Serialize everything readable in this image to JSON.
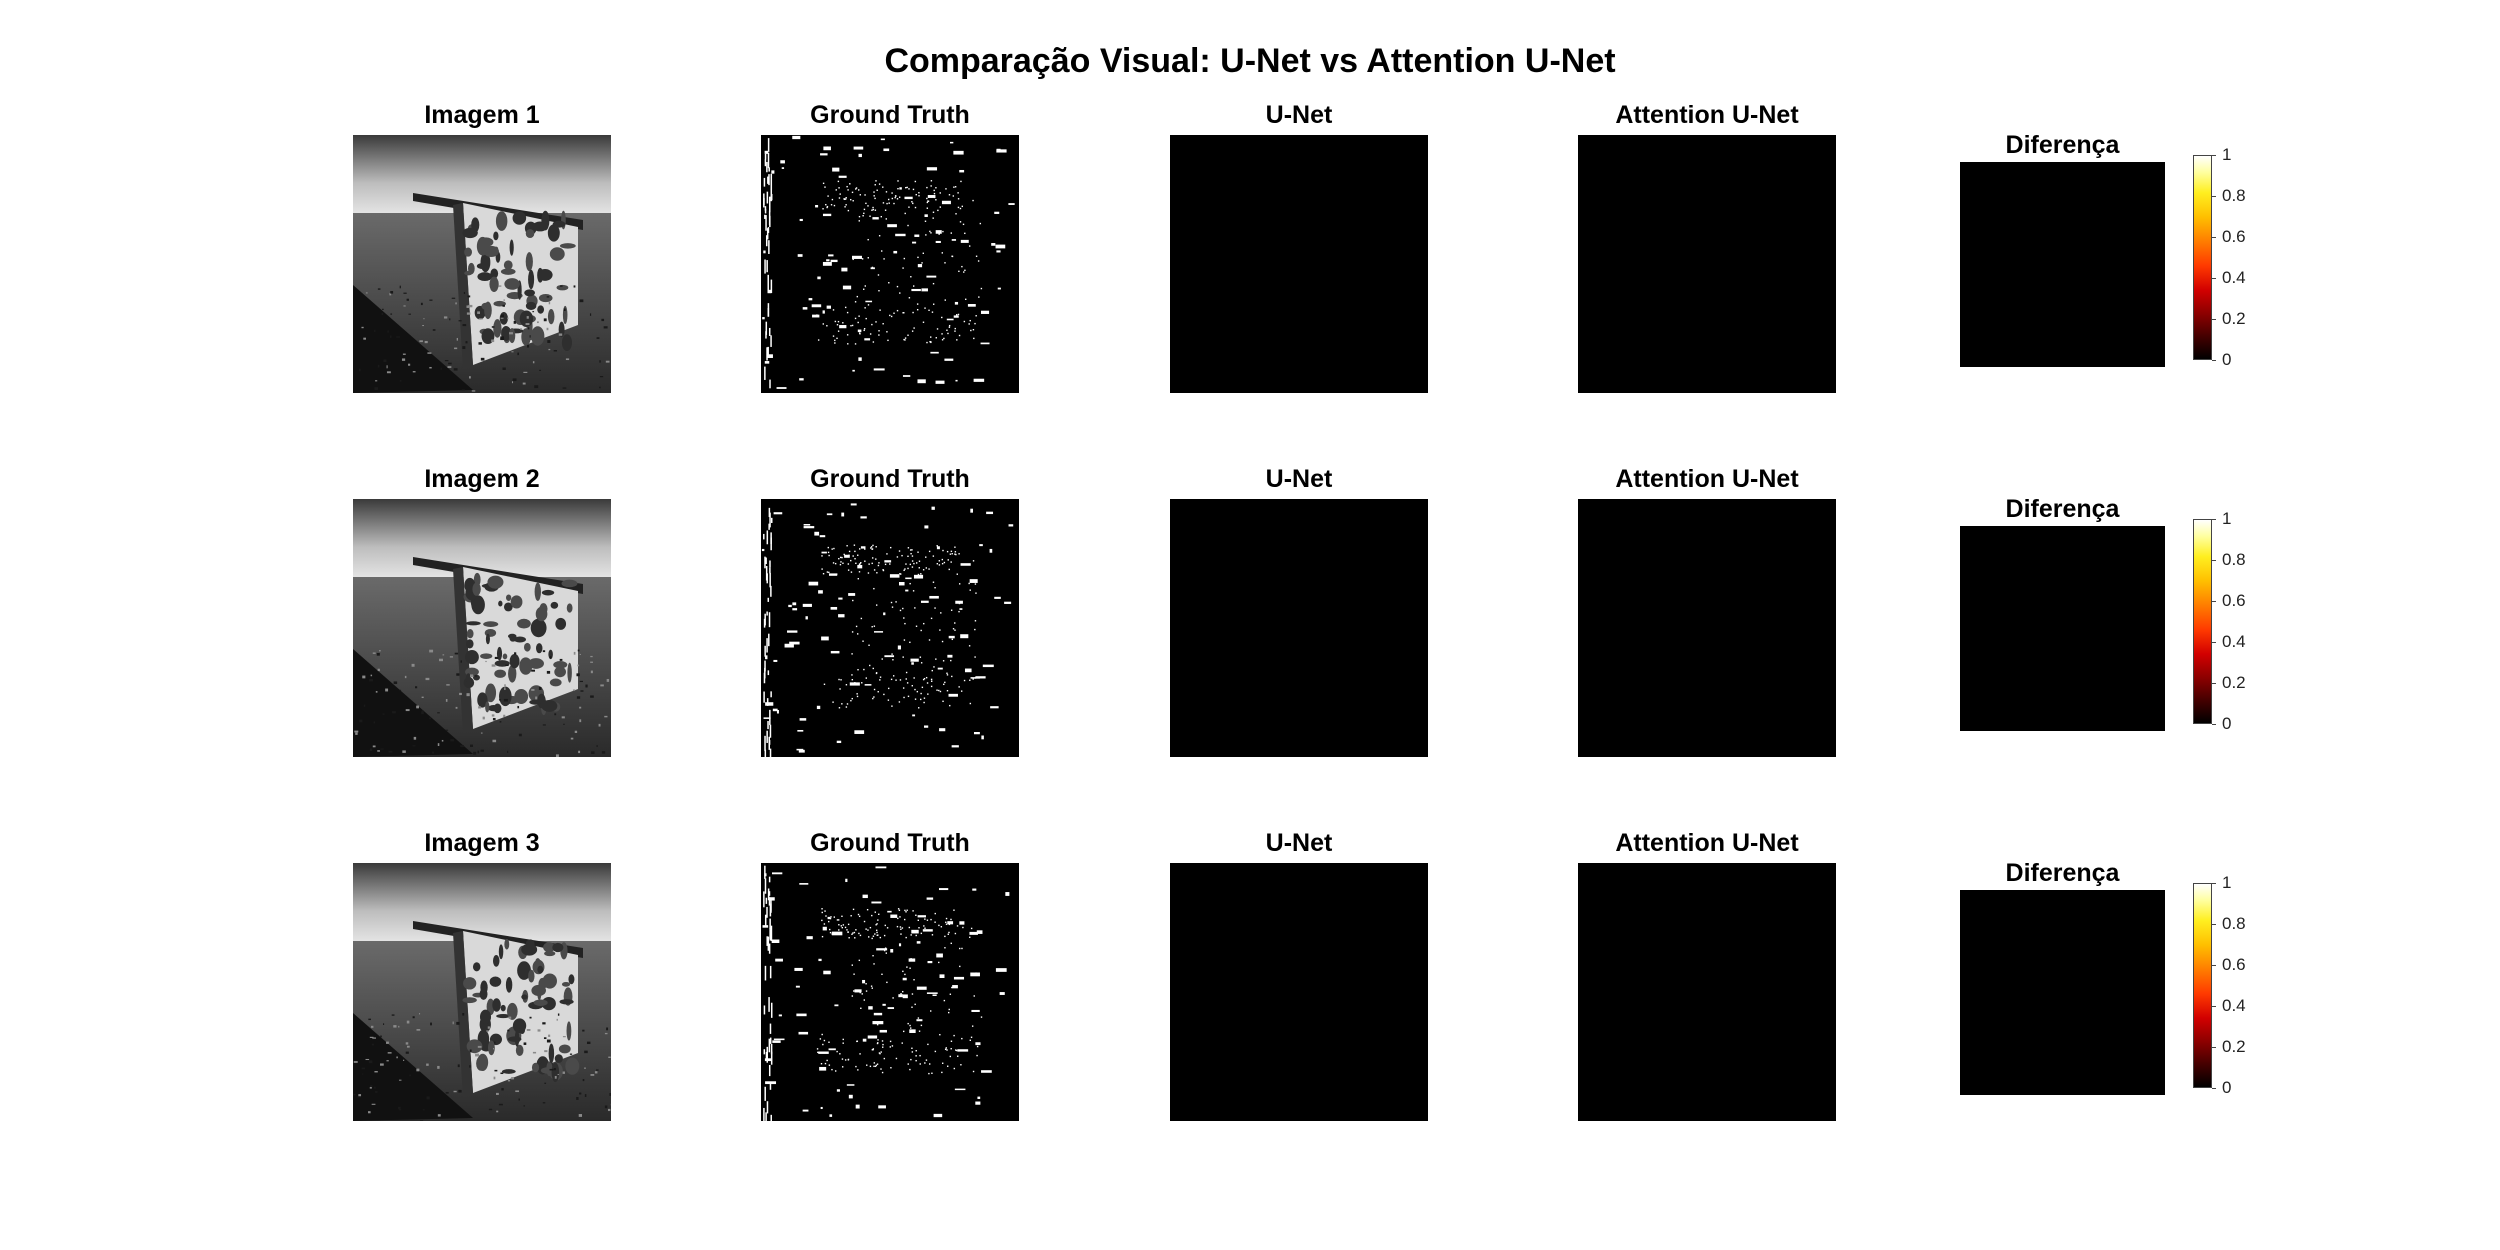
{
  "figure": {
    "title": "Comparação Visual: U-Net vs Attention U-Net",
    "rows": [
      {
        "image_title": "Imagem 1",
        "gt_title": "Ground Truth",
        "unet_title": "U-Net",
        "att_title": "Attention U-Net",
        "diff_title": "Diferença",
        "colorbar_ticks": [
          "0",
          "0.2",
          "0.4",
          "0.6",
          "0.8",
          "1"
        ]
      },
      {
        "image_title": "Imagem 2",
        "gt_title": "Ground Truth",
        "unet_title": "U-Net",
        "att_title": "Attention U-Net",
        "diff_title": "Diferença",
        "colorbar_ticks": [
          "0",
          "0.2",
          "0.4",
          "0.6",
          "0.8",
          "1"
        ]
      },
      {
        "image_title": "Imagem 3",
        "gt_title": "Ground Truth",
        "unet_title": "U-Net",
        "att_title": "Attention U-Net",
        "diff_title": "Diferença",
        "colorbar_ticks": [
          "0",
          "0.2",
          "0.4",
          "0.6",
          "0.8",
          "1"
        ]
      }
    ],
    "colormap": "hot",
    "colors": {
      "background": "#ffffff",
      "mask_background": "#000000",
      "mask_foreground": "#ffffff"
    }
  }
}
